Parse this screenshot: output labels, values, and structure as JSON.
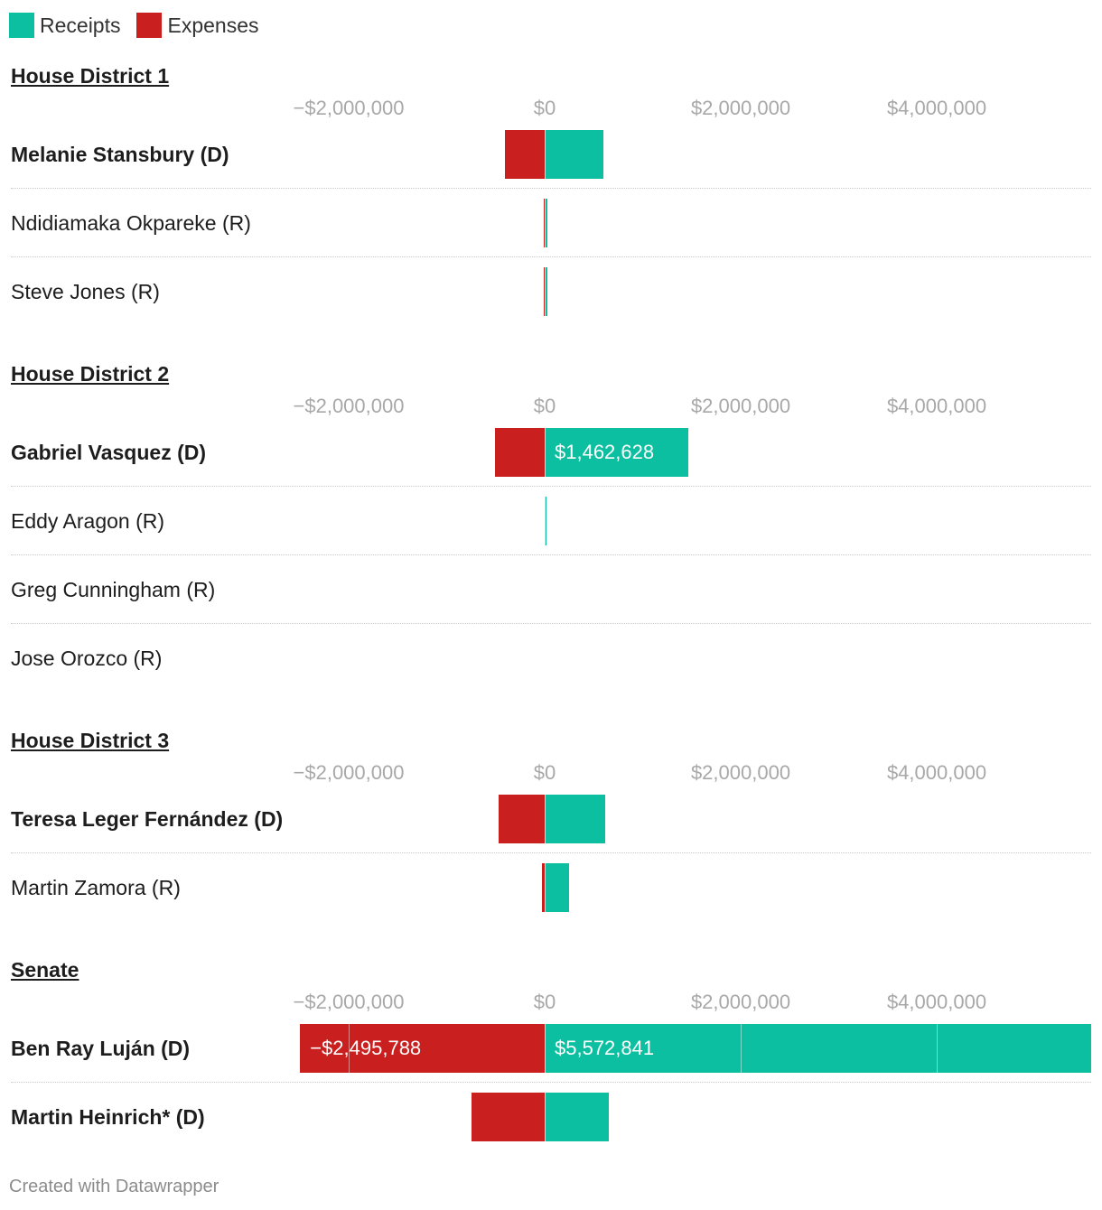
{
  "legend": {
    "receipts": {
      "label": "Receipts",
      "color": "#0bbfa0"
    },
    "expenses": {
      "label": "Expenses",
      "color": "#c91f1f"
    }
  },
  "footer": "Created with Datawrapper",
  "chart_data": {
    "type": "bar",
    "orientation": "horizontal",
    "stacked_diverging": true,
    "axis": {
      "ticks": [
        -2000000,
        0,
        2000000,
        4000000
      ],
      "tick_labels": [
        "−$2,000,000",
        "$0",
        "$2,000,000",
        "$4,000,000"
      ],
      "xlim": [
        -2500000,
        5572841
      ]
    },
    "series": [
      {
        "name": "Receipts",
        "color": "#0bbfa0"
      },
      {
        "name": "Expenses",
        "color": "#c91f1f"
      }
    ],
    "groups": [
      {
        "title": "House District 1",
        "rows": [
          {
            "name": "Melanie Stansbury (D)",
            "bold": true,
            "receipts": 600000,
            "expenses": -410000
          },
          {
            "name": "Ndidiamaka Okpareke (R)",
            "bold": false,
            "receipts": 30000,
            "expenses": -12000
          },
          {
            "name": "Steve Jones (R)",
            "bold": false,
            "receipts": 25000,
            "expenses": -12000
          }
        ]
      },
      {
        "title": "House District 2",
        "rows": [
          {
            "name": "Gabriel Vasquez (D)",
            "bold": true,
            "receipts": 1462628,
            "expenses": -510000,
            "receipts_label": "$1,462,628"
          },
          {
            "name": "Eddy Aragon (R)",
            "bold": false,
            "receipts": 18000,
            "expenses": -4000
          },
          {
            "name": "Greg Cunningham (R)",
            "bold": false,
            "receipts": 0,
            "expenses": 0
          },
          {
            "name": "Jose Orozco (R)",
            "bold": false,
            "receipts": 0,
            "expenses": 0
          }
        ]
      },
      {
        "title": "House District 3",
        "rows": [
          {
            "name": "Teresa Leger Fernández (D)",
            "bold": true,
            "receipts": 620000,
            "expenses": -470000
          },
          {
            "name": "Martin Zamora (R)",
            "bold": false,
            "receipts": 250000,
            "expenses": -30000
          }
        ]
      },
      {
        "title": "Senate",
        "rows": [
          {
            "name": "Ben Ray Luján (D)",
            "bold": true,
            "receipts": 5572841,
            "expenses": -2495788,
            "receipts_label": "$5,572,841",
            "expenses_label": "−$2,495,788"
          },
          {
            "name": "Martin Heinrich* (D)",
            "bold": true,
            "receipts": 655000,
            "expenses": -745000
          }
        ]
      }
    ]
  }
}
